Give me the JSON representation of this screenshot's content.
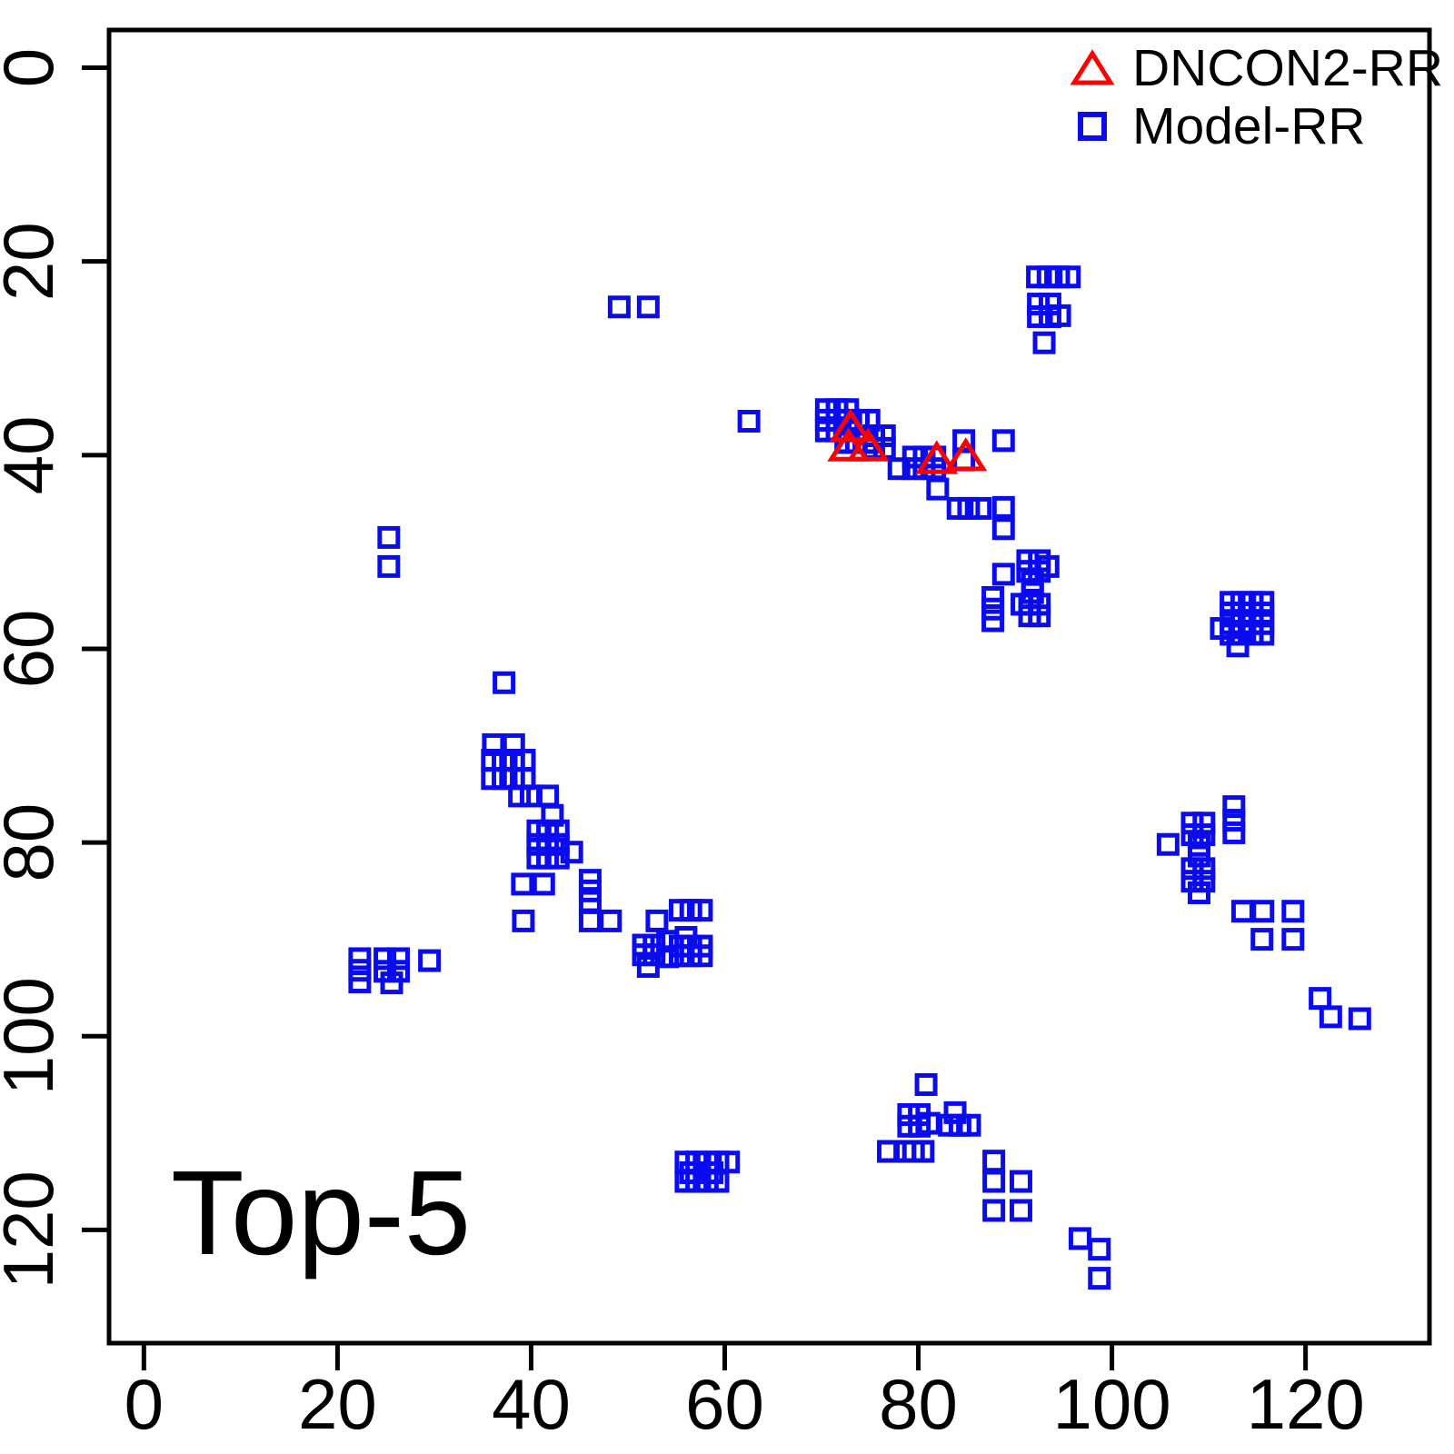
{
  "figure": {
    "background": "#FFFFFF",
    "border_color": "#000000"
  },
  "annotation": {
    "text": "Top-5"
  },
  "legend": {
    "position": "top-right",
    "items": [
      {
        "label": "DNCON2-RR",
        "marker": "open-triangle",
        "color": "#FF0000"
      },
      {
        "label": "Model-RR",
        "marker": "open-square",
        "color": "#0B0BEF"
      }
    ]
  },
  "chart_data": {
    "type": "scatter",
    "title": "",
    "xlabel": "",
    "ylabel": "",
    "x_ticks": [
      0,
      20,
      40,
      60,
      80,
      100,
      120
    ],
    "y_ticks": [
      0,
      20,
      40,
      60,
      80,
      100,
      120
    ],
    "xlim": [
      -3.6,
      132.8
    ],
    "ylim": [
      131.7,
      -3.9
    ],
    "y_axis_reversed": true,
    "grid": false,
    "annotation": "Top-5",
    "series": [
      {
        "name": "Model-RR",
        "marker": "open-square",
        "color": "#0B0BEF",
        "points": [
          [
            49.1,
            24.7
          ],
          [
            52.1,
            24.7
          ],
          [
            92.3,
            21.6
          ],
          [
            93.4,
            21.6
          ],
          [
            94.5,
            21.6
          ],
          [
            95.6,
            21.6
          ],
          [
            92.4,
            24.4
          ],
          [
            93.6,
            24.4
          ],
          [
            92.4,
            25.7
          ],
          [
            93.6,
            25.7
          ],
          [
            94.6,
            25.6
          ],
          [
            93.0,
            28.4
          ],
          [
            25.3,
            48.5
          ],
          [
            25.3,
            51.5
          ],
          [
            37.2,
            63.5
          ],
          [
            62.5,
            36.5
          ],
          [
            70.5,
            35.3
          ],
          [
            71.6,
            35.3
          ],
          [
            72.7,
            35.3
          ],
          [
            70.5,
            36.4
          ],
          [
            71.6,
            36.4
          ],
          [
            72.7,
            36.4
          ],
          [
            73.8,
            36.4
          ],
          [
            74.9,
            36.4
          ],
          [
            70.5,
            37.5
          ],
          [
            71.6,
            37.5
          ],
          [
            72.8,
            37.5
          ],
          [
            72.5,
            38.7
          ],
          [
            73.6,
            38.7
          ],
          [
            74.7,
            38.7
          ],
          [
            75.4,
            38.0
          ],
          [
            76.5,
            38.0
          ],
          [
            75.4,
            39.3
          ],
          [
            76.5,
            39.3
          ],
          [
            78.0,
            41.4
          ],
          [
            79.5,
            40.2
          ],
          [
            80.6,
            40.2
          ],
          [
            81.7,
            40.2
          ],
          [
            79.5,
            41.4
          ],
          [
            80.6,
            41.4
          ],
          [
            81.7,
            41.4
          ],
          [
            82.0,
            43.5
          ],
          [
            84.7,
            38.5
          ],
          [
            84.7,
            40.5
          ],
          [
            88.8,
            38.5
          ],
          [
            84.1,
            45.5
          ],
          [
            85.2,
            45.5
          ],
          [
            86.4,
            45.5
          ],
          [
            88.8,
            45.4
          ],
          [
            88.8,
            47.6
          ],
          [
            88.8,
            52.3
          ],
          [
            91.3,
            50.9
          ],
          [
            92.5,
            50.9
          ],
          [
            91.3,
            52.0
          ],
          [
            92.5,
            52.0
          ],
          [
            93.4,
            51.5
          ],
          [
            91.8,
            53.1
          ],
          [
            91.8,
            54.2
          ],
          [
            90.7,
            55.4
          ],
          [
            91.5,
            55.4
          ],
          [
            92.5,
            55.4
          ],
          [
            91.5,
            56.6
          ],
          [
            92.5,
            56.6
          ],
          [
            87.7,
            54.7
          ],
          [
            87.7,
            55.9
          ],
          [
            87.7,
            57.1
          ],
          [
            112.3,
            55.2
          ],
          [
            113.4,
            55.2
          ],
          [
            114.5,
            55.2
          ],
          [
            115.6,
            55.2
          ],
          [
            112.3,
            56.3
          ],
          [
            113.4,
            56.3
          ],
          [
            114.5,
            56.3
          ],
          [
            115.6,
            56.3
          ],
          [
            112.3,
            57.4
          ],
          [
            113.4,
            57.4
          ],
          [
            114.5,
            57.4
          ],
          [
            115.6,
            57.4
          ],
          [
            112.3,
            58.5
          ],
          [
            113.4,
            58.5
          ],
          [
            114.5,
            58.5
          ],
          [
            115.6,
            58.5
          ],
          [
            111.3,
            57.9
          ],
          [
            113.0,
            59.7
          ],
          [
            36.1,
            69.9
          ],
          [
            38.2,
            69.9
          ],
          [
            36.0,
            71.5
          ],
          [
            37.1,
            71.5
          ],
          [
            38.2,
            71.5
          ],
          [
            39.3,
            71.5
          ],
          [
            36.0,
            73.4
          ],
          [
            37.1,
            73.4
          ],
          [
            38.2,
            73.4
          ],
          [
            39.3,
            73.4
          ],
          [
            38.8,
            75.2
          ],
          [
            40.0,
            75.2
          ],
          [
            41.7,
            75.2
          ],
          [
            42.2,
            77.2
          ],
          [
            40.7,
            78.8
          ],
          [
            41.7,
            78.8
          ],
          [
            42.8,
            78.8
          ],
          [
            40.7,
            80.2
          ],
          [
            41.7,
            80.2
          ],
          [
            42.8,
            80.2
          ],
          [
            40.7,
            81.6
          ],
          [
            41.7,
            81.6
          ],
          [
            42.8,
            81.6
          ],
          [
            44.2,
            81.0
          ],
          [
            39.1,
            84.3
          ],
          [
            41.3,
            84.3
          ],
          [
            46.1,
            83.9
          ],
          [
            46.1,
            85.0
          ],
          [
            46.1,
            86.1
          ],
          [
            39.2,
            88.1
          ],
          [
            46.1,
            88.1
          ],
          [
            48.2,
            88.1
          ],
          [
            22.3,
            92.0
          ],
          [
            22.3,
            93.2
          ],
          [
            22.3,
            94.4
          ],
          [
            24.9,
            92.0
          ],
          [
            26.3,
            92.0
          ],
          [
            24.9,
            93.3
          ],
          [
            26.3,
            93.3
          ],
          [
            25.6,
            94.5
          ],
          [
            29.5,
            92.2
          ],
          [
            53.0,
            88.1
          ],
          [
            55.4,
            87.0
          ],
          [
            56.5,
            87.0
          ],
          [
            57.6,
            87.0
          ],
          [
            51.6,
            90.6
          ],
          [
            52.7,
            90.6
          ],
          [
            51.6,
            91.6
          ],
          [
            52.7,
            91.6
          ],
          [
            52.1,
            92.8
          ],
          [
            54.1,
            90.2
          ],
          [
            54.1,
            91.8
          ],
          [
            56.0,
            89.8
          ],
          [
            55.4,
            90.7
          ],
          [
            56.5,
            90.7
          ],
          [
            57.6,
            90.7
          ],
          [
            55.4,
            91.7
          ],
          [
            56.5,
            91.7
          ],
          [
            57.6,
            91.7
          ],
          [
            56.0,
            113.0
          ],
          [
            57.1,
            113.0
          ],
          [
            58.2,
            113.0
          ],
          [
            59.3,
            113.0
          ],
          [
            60.4,
            113.0
          ],
          [
            56.5,
            114.1
          ],
          [
            58.7,
            114.1
          ],
          [
            56.0,
            115.0
          ],
          [
            57.1,
            115.0
          ],
          [
            58.2,
            115.0
          ],
          [
            59.3,
            115.0
          ],
          [
            80.8,
            105.0
          ],
          [
            79.0,
            108.1
          ],
          [
            80.1,
            108.1
          ],
          [
            79.0,
            109.3
          ],
          [
            80.1,
            109.3
          ],
          [
            81.1,
            109.0
          ],
          [
            83.8,
            107.9
          ],
          [
            83.2,
            109.2
          ],
          [
            84.3,
            109.2
          ],
          [
            85.3,
            109.2
          ],
          [
            76.9,
            111.9
          ],
          [
            78.6,
            111.9
          ],
          [
            79.5,
            111.9
          ],
          [
            80.5,
            111.9
          ],
          [
            87.8,
            112.9
          ],
          [
            87.8,
            115.0
          ],
          [
            90.6,
            115.0
          ],
          [
            87.8,
            118.0
          ],
          [
            90.6,
            118.0
          ],
          [
            96.7,
            120.9
          ],
          [
            98.7,
            122.0
          ],
          [
            98.7,
            125.0
          ],
          [
            105.8,
            80.2
          ],
          [
            108.3,
            78.0
          ],
          [
            109.5,
            78.0
          ],
          [
            108.3,
            79.2
          ],
          [
            109.5,
            79.2
          ],
          [
            109.0,
            80.3
          ],
          [
            109.0,
            81.4
          ],
          [
            112.6,
            76.3
          ],
          [
            112.6,
            77.7
          ],
          [
            112.6,
            79.0
          ],
          [
            108.3,
            82.7
          ],
          [
            109.5,
            82.7
          ],
          [
            108.3,
            84.0
          ],
          [
            109.5,
            84.0
          ],
          [
            109.0,
            85.2
          ],
          [
            113.5,
            87.1
          ],
          [
            115.6,
            87.1
          ],
          [
            118.7,
            87.1
          ],
          [
            115.5,
            90.0
          ],
          [
            118.7,
            90.0
          ],
          [
            121.5,
            96.1
          ],
          [
            122.6,
            98.0
          ],
          [
            125.6,
            98.2
          ]
        ]
      },
      {
        "name": "DNCON2-RR",
        "marker": "open-triangle",
        "color": "#FF0000",
        "points": [
          [
            73.0,
            37.1
          ],
          [
            72.8,
            39.1
          ],
          [
            74.8,
            39.1
          ],
          [
            81.9,
            40.4
          ],
          [
            84.9,
            40.1
          ]
        ]
      }
    ]
  }
}
